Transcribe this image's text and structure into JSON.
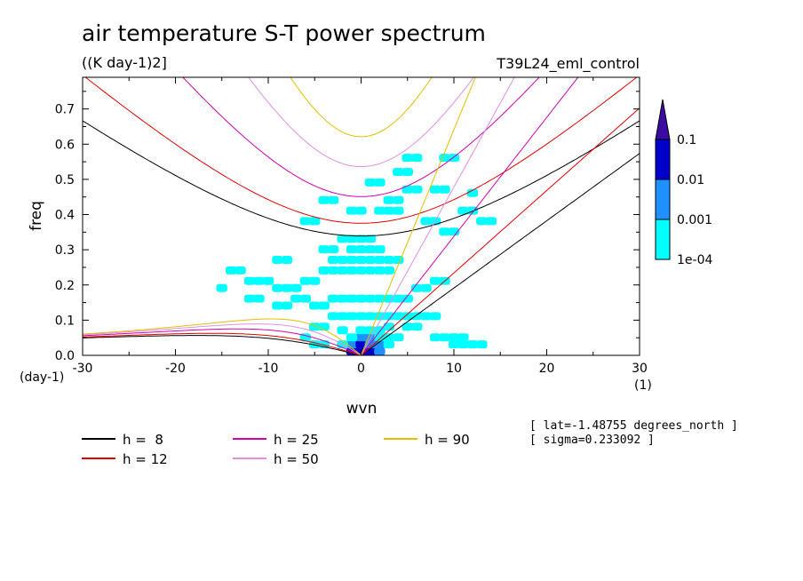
{
  "chart_data": {
    "type": "heatmap",
    "title": "air temperature S-T power spectrum",
    "units": "((K day-1)2]",
    "run_label": "T39L24_eml_control",
    "xlabel": "wvn",
    "ylabel": "freq",
    "x_unit_label": "(1)",
    "y_unit_label": "(day-1)",
    "xlim": [
      -30,
      30
    ],
    "ylim": [
      0,
      0.79
    ],
    "xticks": [
      -30,
      -20,
      -10,
      0,
      10,
      20,
      30
    ],
    "xtick_labels": [
      "-30",
      "-20",
      "-10",
      "0",
      "10",
      "20",
      "30"
    ],
    "yticks": [
      0,
      0.1,
      0.2,
      0.3,
      0.4,
      0.5,
      0.6,
      0.7
    ],
    "ytick_labels": [
      "0.0",
      "0.1",
      "0.2",
      "0.3",
      "0.4",
      "0.5",
      "0.6",
      "0.7"
    ],
    "colorbar": {
      "levels": [
        "1e-04",
        "0.001",
        "0.01",
        "0.1"
      ],
      "colors": [
        "#00ffff",
        "#1e90ff",
        "#0000cd",
        "#3a0ca3"
      ]
    },
    "dispersion_curves": [
      {
        "name": "h =  8",
        "h": 8,
        "color": "#000000"
      },
      {
        "name": "h = 12",
        "h": 12,
        "color": "#e00000"
      },
      {
        "name": "h = 25",
        "h": 25,
        "color": "#d000b0"
      },
      {
        "name": "h = 50",
        "h": 50,
        "color": "#e090e0"
      },
      {
        "name": "h = 90",
        "h": 90,
        "color": "#e0c000"
      }
    ],
    "spectrum_cells": [
      [
        -1,
        0.01,
        3
      ],
      [
        0,
        0.01,
        3
      ],
      [
        1,
        0.01,
        3
      ],
      [
        2,
        0.01,
        2
      ],
      [
        -1,
        0.03,
        2
      ],
      [
        0,
        0.03,
        3
      ],
      [
        1,
        0.03,
        2
      ],
      [
        2,
        0.03,
        2
      ],
      [
        3,
        0.03,
        1
      ],
      [
        -2,
        0.03,
        1
      ],
      [
        0,
        0.05,
        2
      ],
      [
        1,
        0.05,
        2
      ],
      [
        -1,
        0.05,
        1
      ],
      [
        2,
        0.05,
        1
      ],
      [
        3,
        0.05,
        1
      ],
      [
        4,
        0.05,
        1
      ],
      [
        0,
        0.07,
        1
      ],
      [
        1,
        0.07,
        1
      ],
      [
        -2,
        0.07,
        1
      ],
      [
        2,
        0.07,
        1
      ],
      [
        -14,
        0.24,
        1
      ],
      [
        -13,
        0.24,
        1
      ],
      [
        -12,
        0.21,
        1
      ],
      [
        -11,
        0.21,
        1
      ],
      [
        -10,
        0.21,
        1
      ],
      [
        -9,
        0.19,
        1
      ],
      [
        -8,
        0.19,
        1
      ],
      [
        -7,
        0.19,
        1
      ],
      [
        -6,
        0.21,
        1
      ],
      [
        -5,
        0.21,
        1
      ],
      [
        -4,
        0.24,
        1
      ],
      [
        -3,
        0.24,
        1
      ],
      [
        -2,
        0.24,
        1
      ],
      [
        -1,
        0.24,
        1
      ],
      [
        0,
        0.24,
        1
      ],
      [
        1,
        0.24,
        1
      ],
      [
        2,
        0.24,
        1
      ],
      [
        3,
        0.24,
        1
      ],
      [
        -3,
        0.27,
        1
      ],
      [
        -2,
        0.27,
        1
      ],
      [
        -1,
        0.27,
        1
      ],
      [
        0,
        0.27,
        1
      ],
      [
        1,
        0.27,
        1
      ],
      [
        2,
        0.27,
        1
      ],
      [
        3,
        0.27,
        1
      ],
      [
        4,
        0.27,
        1
      ],
      [
        -4,
        0.3,
        1
      ],
      [
        -3,
        0.3,
        1
      ],
      [
        -1,
        0.3,
        1
      ],
      [
        0,
        0.3,
        1
      ],
      [
        1,
        0.3,
        1
      ],
      [
        2,
        0.3,
        1
      ],
      [
        -2,
        0.33,
        1
      ],
      [
        -1,
        0.33,
        1
      ],
      [
        0,
        0.33,
        1
      ],
      [
        1,
        0.33,
        1
      ],
      [
        -12,
        0.16,
        1
      ],
      [
        -11,
        0.16,
        1
      ],
      [
        -9,
        0.14,
        1
      ],
      [
        -8,
        0.14,
        1
      ],
      [
        -7,
        0.16,
        1
      ],
      [
        -6,
        0.16,
        1
      ],
      [
        -5,
        0.14,
        1
      ],
      [
        -4,
        0.14,
        1
      ],
      [
        -3,
        0.16,
        1
      ],
      [
        -2,
        0.16,
        1
      ],
      [
        -1,
        0.16,
        1
      ],
      [
        0,
        0.16,
        1
      ],
      [
        1,
        0.16,
        1
      ],
      [
        2,
        0.16,
        1
      ],
      [
        3,
        0.16,
        1
      ],
      [
        4,
        0.16,
        1
      ],
      [
        5,
        0.16,
        1
      ],
      [
        6,
        0.19,
        1
      ],
      [
        7,
        0.19,
        1
      ],
      [
        8,
        0.21,
        1
      ],
      [
        9,
        0.21,
        1
      ],
      [
        -3,
        0.11,
        1
      ],
      [
        -2,
        0.11,
        1
      ],
      [
        -1,
        0.11,
        1
      ],
      [
        0,
        0.11,
        1
      ],
      [
        1,
        0.11,
        1
      ],
      [
        2,
        0.11,
        1
      ],
      [
        3,
        0.11,
        1
      ],
      [
        4,
        0.11,
        1
      ],
      [
        5,
        0.11,
        1
      ],
      [
        6,
        0.11,
        1
      ],
      [
        7,
        0.11,
        1
      ],
      [
        8,
        0.11,
        1
      ],
      [
        -4,
        0.08,
        1
      ],
      [
        -5,
        0.08,
        1
      ],
      [
        3,
        0.08,
        1
      ],
      [
        5,
        0.08,
        1
      ],
      [
        6,
        0.08,
        1
      ],
      [
        8,
        0.05,
        1
      ],
      [
        9,
        0.05,
        1
      ],
      [
        10,
        0.05,
        1
      ],
      [
        11,
        0.05,
        1
      ],
      [
        10,
        0.03,
        1
      ],
      [
        11,
        0.03,
        1
      ],
      [
        12,
        0.03,
        1
      ],
      [
        13,
        0.03,
        1
      ],
      [
        -5,
        0.03,
        1
      ],
      [
        -4,
        0.03,
        1
      ],
      [
        -6,
        0.05,
        1
      ],
      [
        -1,
        0.41,
        1
      ],
      [
        0,
        0.41,
        1
      ],
      [
        2,
        0.41,
        1
      ],
      [
        3,
        0.41,
        1
      ],
      [
        4,
        0.41,
        1
      ],
      [
        3,
        0.44,
        1
      ],
      [
        4,
        0.44,
        1
      ],
      [
        5,
        0.47,
        1
      ],
      [
        6,
        0.47,
        1
      ],
      [
        11,
        0.41,
        1
      ],
      [
        12,
        0.41,
        1
      ],
      [
        13,
        0.38,
        1
      ],
      [
        14,
        0.38,
        1
      ],
      [
        7,
        0.38,
        1
      ],
      [
        8,
        0.38,
        1
      ],
      [
        9,
        0.35,
        1
      ],
      [
        10,
        0.35,
        1
      ],
      [
        4,
        0.52,
        1
      ],
      [
        5,
        0.52,
        1
      ],
      [
        5,
        0.56,
        1
      ],
      [
        6,
        0.56,
        1
      ],
      [
        10,
        0.56,
        1
      ],
      [
        9,
        0.56,
        1
      ],
      [
        1,
        0.49,
        1
      ],
      [
        2,
        0.49,
        1
      ],
      [
        -4,
        0.44,
        1
      ],
      [
        -3,
        0.44,
        1
      ],
      [
        8,
        0.47,
        1
      ],
      [
        9,
        0.47,
        1
      ],
      [
        12,
        0.46,
        1
      ],
      [
        -5,
        0.38,
        1
      ],
      [
        -6,
        0.38,
        1
      ],
      [
        -15,
        0.19,
        1
      ],
      [
        -9,
        0.27,
        1
      ],
      [
        -8,
        0.27,
        1
      ]
    ]
  },
  "info": {
    "lat": "[ lat=-1.48755 degrees_north ]",
    "sigma": "[ sigma=0.233092 ]"
  }
}
